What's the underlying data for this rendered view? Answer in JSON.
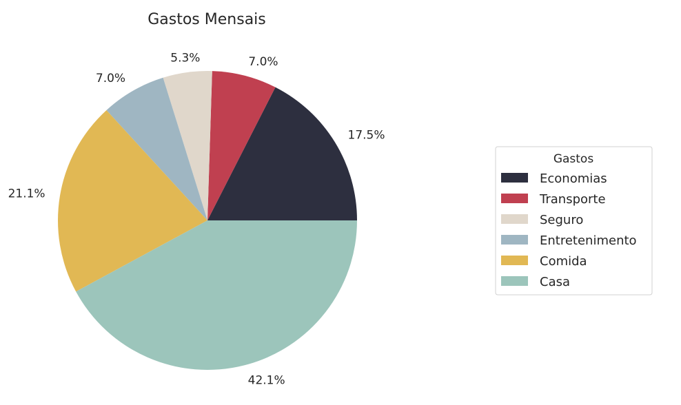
{
  "chart_data": {
    "type": "pie",
    "title": "Gastos Mensais",
    "legend": {
      "title": "Gastos",
      "placement": "right"
    },
    "slices": [
      {
        "label": "Economias",
        "value": 17.5,
        "pct_label": "17.5%",
        "color": "#2d2f3f"
      },
      {
        "label": "Transporte",
        "value": 7.0,
        "pct_label": "7.0%",
        "color": "#c04050"
      },
      {
        "label": "Seguro",
        "value": 5.3,
        "pct_label": "5.3%",
        "color": "#e0d7cb"
      },
      {
        "label": "Entretenimento",
        "value": 7.0,
        "pct_label": "7.0%",
        "color": "#9fb6c2"
      },
      {
        "label": "Comida",
        "value": 21.1,
        "pct_label": "21.1%",
        "color": "#e1b854"
      },
      {
        "label": "Casa",
        "value": 42.1,
        "pct_label": "42.1%",
        "color": "#9cc5bb"
      }
    ]
  }
}
